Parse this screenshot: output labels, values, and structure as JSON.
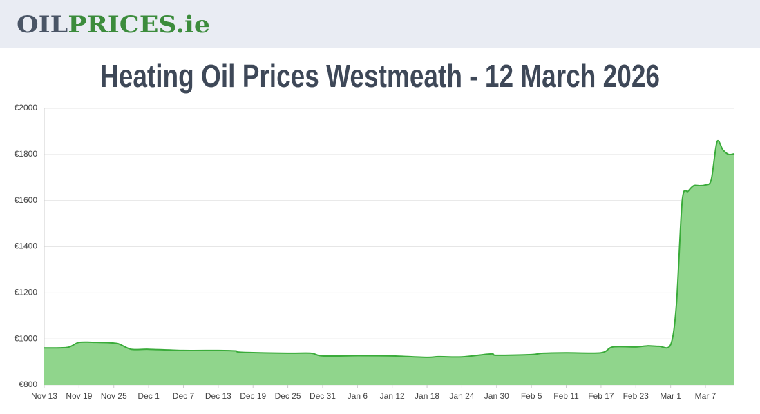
{
  "header": {
    "logo": [
      "OIL",
      "PRICES.ie"
    ]
  },
  "chart_data": {
    "type": "area",
    "title": "Heating Oil Prices Westmeath - 12 March 2026",
    "x": [
      "Nov 13",
      "Nov 17",
      "Nov 19",
      "Nov 22",
      "Nov 25",
      "Nov 26",
      "Nov 28",
      "Dec 1",
      "Dec 7",
      "Dec 13",
      "Dec 16",
      "Dec 17",
      "Dec 25",
      "Dec 29",
      "Dec 31",
      "Jan 6",
      "Jan 12",
      "Jan 18",
      "Jan 20",
      "Jan 24",
      "Jan 29",
      "Jan 30",
      "Feb 5",
      "Feb 7",
      "Feb 11",
      "Feb 17",
      "Feb 19",
      "Feb 23",
      "Feb 25",
      "Feb 27",
      "Mar 1",
      "Mar 2",
      "Mar 3",
      "Mar 4",
      "Mar 5",
      "Mar 6",
      "Mar 7",
      "Mar 8",
      "Mar 9",
      "Mar 10",
      "Mar 11",
      "Mar 12"
    ],
    "series": [
      {
        "name": "Price",
        "color": "#3aab3a",
        "fill": "#90d58c",
        "values": [
          961,
          963,
          985,
          985,
          982,
          977,
          955,
          955,
          950,
          950,
          948,
          942,
          938,
          938,
          926,
          927,
          926,
          920,
          923,
          922,
          935,
          929,
          932,
          938,
          940,
          940,
          965,
          965,
          970,
          968,
          975,
          1150,
          1600,
          1640,
          1665,
          1665,
          1668,
          1690,
          1855,
          1820,
          1800,
          1803
        ]
      }
    ],
    "xticks": [
      "Nov 13",
      "Nov 19",
      "Nov 25",
      "Dec 1",
      "Dec 7",
      "Dec 13",
      "Dec 19",
      "Dec 25",
      "Dec 31",
      "Jan 6",
      "Jan 12",
      "Jan 18",
      "Jan 24",
      "Jan 30",
      "Feb 5",
      "Feb 11",
      "Feb 17",
      "Feb 23",
      "Mar 1",
      "Mar 7"
    ],
    "xlim": [
      "Nov 13",
      "Mar 12"
    ],
    "ylim": [
      800,
      2000
    ],
    "yticks": [
      {
        "value": 800,
        "label": "€800"
      },
      {
        "value": 1000,
        "label": "€1000"
      },
      {
        "value": 1200,
        "label": "€1200"
      },
      {
        "value": 1400,
        "label": "€1400"
      },
      {
        "value": 1600,
        "label": "€1600"
      },
      {
        "value": 1800,
        "label": "€1800"
      },
      {
        "value": 2000,
        "label": "€2000"
      }
    ],
    "grid": true
  }
}
